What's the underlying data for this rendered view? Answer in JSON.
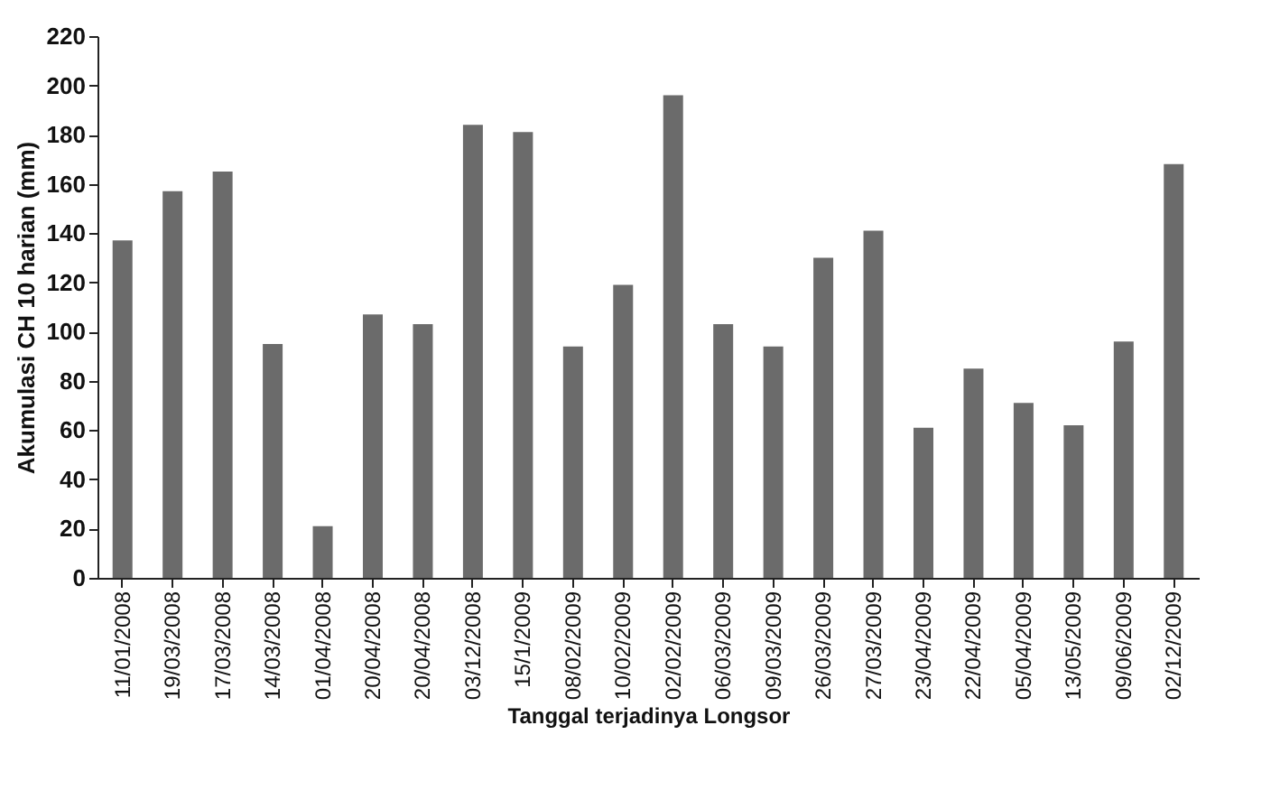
{
  "chart_data": {
    "type": "bar",
    "xlabel": "Tanggal terjadinya Longsor",
    "ylabel": "Akumulasi CH 10 harian (mm)",
    "categories": [
      "11/01/2008",
      "19/03/2008",
      "17/03/2008",
      "14/03/2008",
      "01/04/2008",
      "20/04/2008",
      "20/04/2008",
      "03/12/2008",
      "15/1/2009",
      "08/02/2009",
      "10/02/2009",
      "02/02/2009",
      "06/03/2009",
      "09/03/2009",
      "26/03/2009",
      "27/03/2009",
      "23/04/2009",
      "22/04/2009",
      "05/04/2009",
      "13/05/2009",
      "09/06/2009",
      "02/12/2009"
    ],
    "values": [
      137,
      157,
      165,
      95,
      21,
      107,
      103,
      184,
      181,
      94,
      119,
      196,
      103,
      94,
      130,
      141,
      61,
      85,
      71,
      62,
      96,
      168
    ],
    "color": "#6b6b6b",
    "ylim": [
      0,
      220
    ],
    "yticks": [
      0,
      20,
      40,
      60,
      80,
      100,
      120,
      140,
      160,
      180,
      200,
      220
    ],
    "grid": false
  }
}
